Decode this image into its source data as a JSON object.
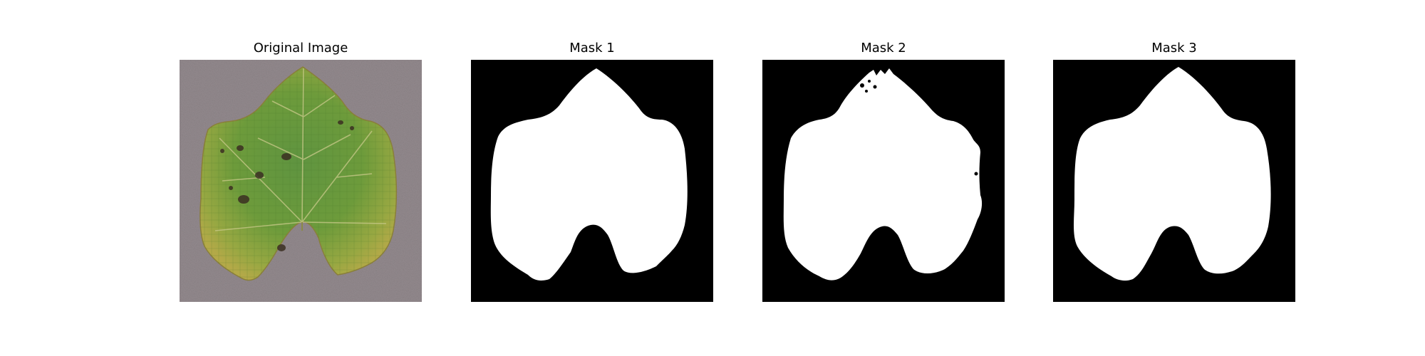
{
  "figure": {
    "panels": [
      {
        "title": "Original Image"
      },
      {
        "title": "Mask 1"
      },
      {
        "title": "Mask 2"
      },
      {
        "title": "Mask 3"
      }
    ]
  },
  "colors": {
    "background_gray": "#938a8e",
    "leaf_green": "#6f9a3c",
    "leaf_dark_green": "#4f7a2c",
    "leaf_yellow": "#b7ad45",
    "mask_background": "#000000",
    "mask_foreground": "#ffffff"
  }
}
